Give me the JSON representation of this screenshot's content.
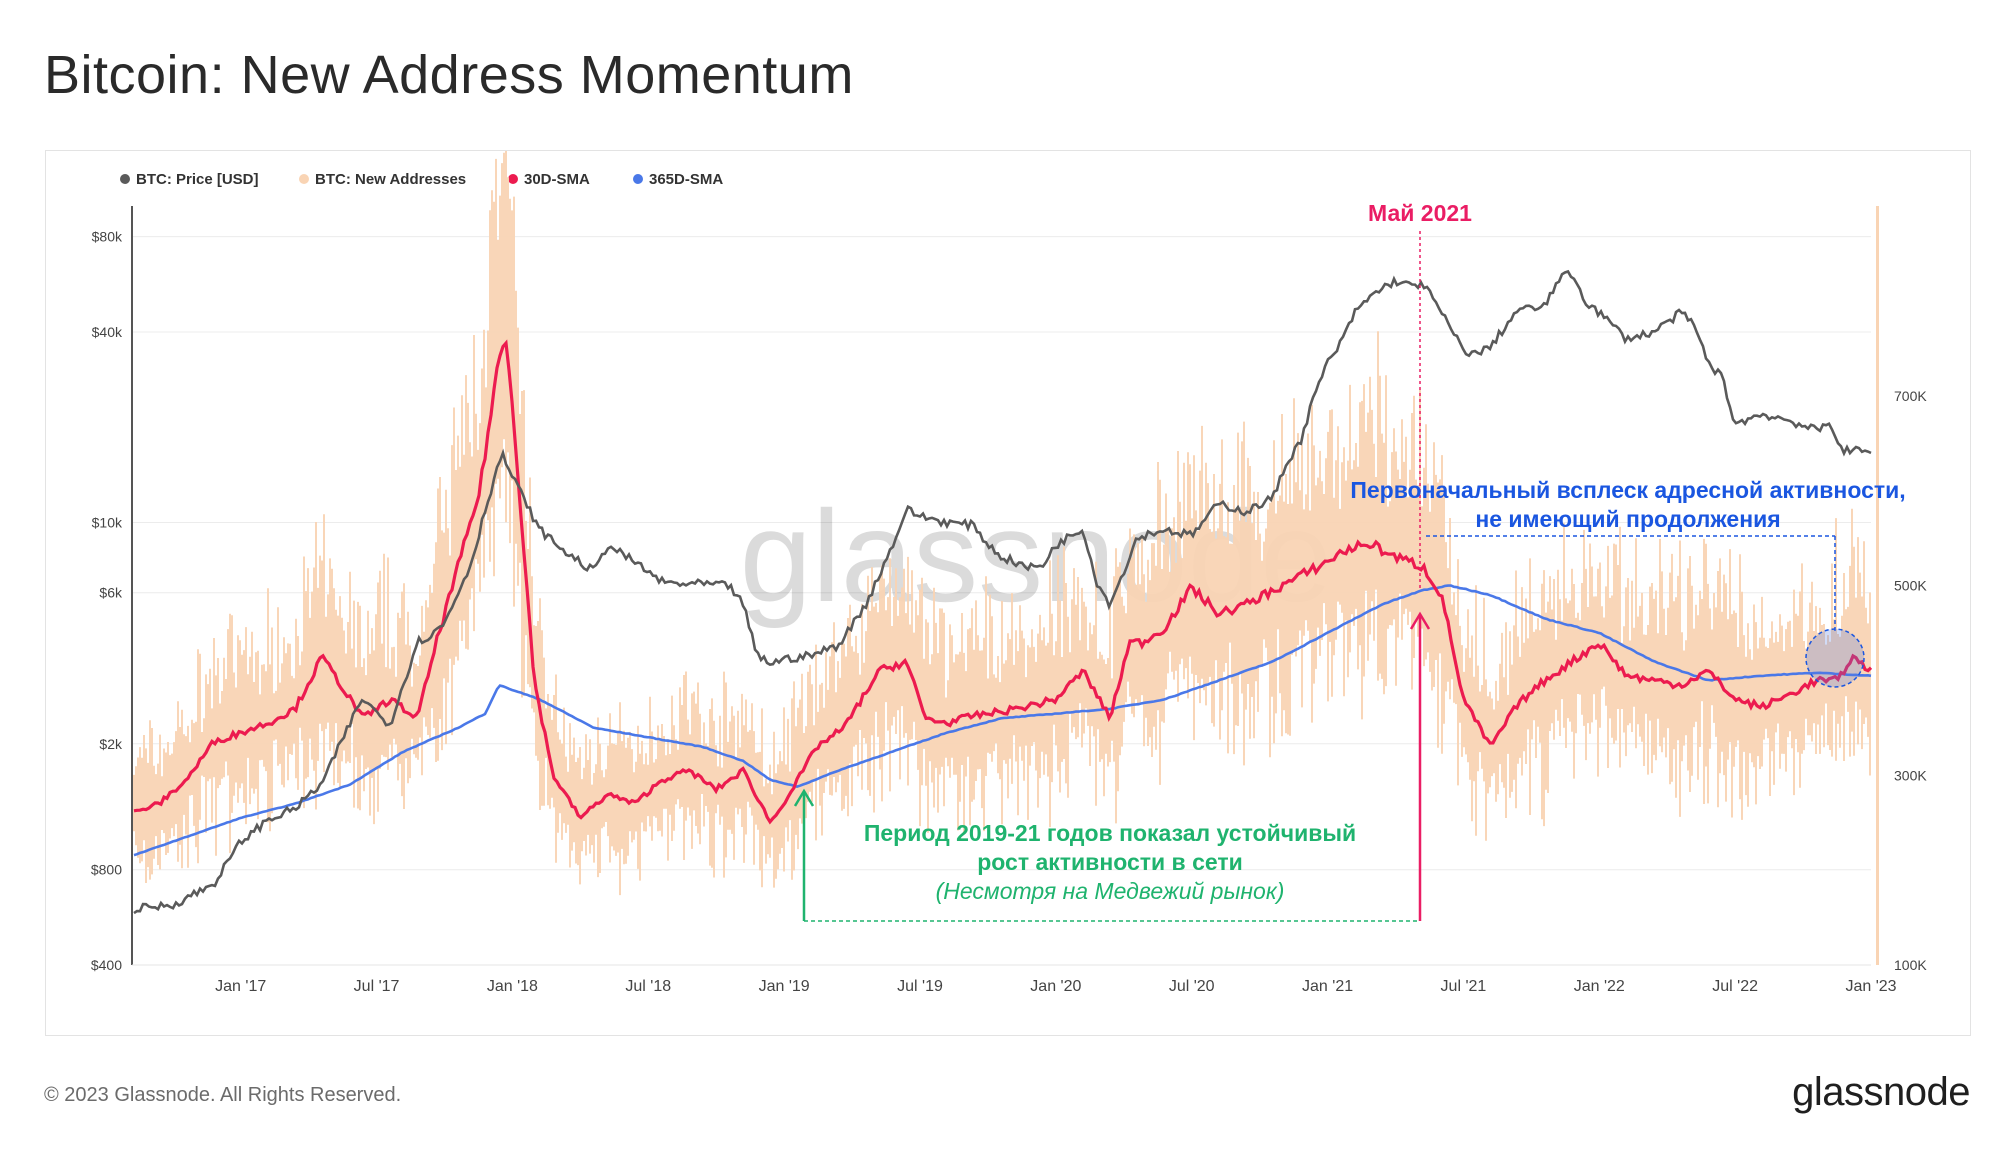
{
  "title": "Bitcoin: New Address Momentum",
  "footer": {
    "copyright": "© 2023 Glassnode. All Rights Reserved.",
    "brand": "glassnode"
  },
  "watermark": "glassnode",
  "colors": {
    "price": "#5a5a5a",
    "new_addresses": "#f9d4b4",
    "sma30": "#ec1b4f",
    "sma365": "#4a78e8",
    "green": "#1fb36e",
    "blue_note": "#1a56e0",
    "magenta": "#ea1d64"
  },
  "chart_data": {
    "type": "line",
    "legend": [
      {
        "label": "BTC: Price [USD]",
        "color": "#5a5a5a"
      },
      {
        "label": "BTC: New Addresses",
        "color": "#f9d4b4"
      },
      {
        "label": "30D-SMA",
        "color": "#ec1b4f"
      },
      {
        "label": "365D-SMA",
        "color": "#4a78e8"
      }
    ],
    "x_ticks": [
      "Jan '17",
      "Jul '17",
      "Jan '18",
      "Jul '18",
      "Jan '19",
      "Jul '19",
      "Jan '20",
      "Jul '20",
      "Jan '21",
      "Jul '21",
      "Jan '22",
      "Jul '22",
      "Jan '23"
    ],
    "x_range": [
      2016.6,
      2023.0
    ],
    "y_left": {
      "scale": "log",
      "range": [
        400,
        100000
      ],
      "ticks": [
        400,
        800,
        2000,
        6000,
        10000,
        40000,
        80000
      ],
      "tick_labels": [
        "$400",
        "$800",
        "$2k",
        "$6k",
        "$10k",
        "$40k",
        "$80k"
      ]
    },
    "y_right": {
      "scale": "linear",
      "range": [
        100000,
        900000
      ],
      "ticks": [
        100000,
        300000,
        500000,
        700000
      ],
      "tick_labels": [
        "100K",
        "300K",
        "500K",
        "700K"
      ]
    },
    "price": {
      "x": [
        2016.6,
        2016.75,
        2016.9,
        2017.0,
        2017.1,
        2017.2,
        2017.3,
        2017.4,
        2017.45,
        2017.5,
        2017.55,
        2017.65,
        2017.7,
        2017.75,
        2017.8,
        2017.85,
        2017.9,
        2017.96,
        2018.0,
        2018.05,
        2018.1,
        2018.2,
        2018.3,
        2018.35,
        2018.45,
        2018.55,
        2018.6,
        2018.7,
        2018.8,
        2018.85,
        2018.9,
        2018.95,
        2019.0,
        2019.1,
        2019.2,
        2019.3,
        2019.4,
        2019.45,
        2019.5,
        2019.6,
        2019.7,
        2019.75,
        2019.8,
        2019.9,
        2019.95,
        2020.0,
        2020.1,
        2020.15,
        2020.2,
        2020.3,
        2020.4,
        2020.5,
        2020.6,
        2020.7,
        2020.8,
        2020.85,
        2020.9,
        2020.95,
        2021.0,
        2021.05,
        2021.1,
        2021.15,
        2021.2,
        2021.25,
        2021.3,
        2021.35,
        2021.4,
        2021.5,
        2021.55,
        2021.6,
        2021.7,
        2021.8,
        2021.85,
        2021.9,
        2021.95,
        2022.0,
        2022.05,
        2022.1,
        2022.2,
        2022.3,
        2022.35,
        2022.4,
        2022.45,
        2022.5,
        2022.6,
        2022.7,
        2022.8,
        2022.85,
        2022.9,
        2022.95,
        2023.0
      ],
      "y": [
        600,
        620,
        720,
        980,
        1150,
        1250,
        1500,
        2300,
        2800,
        2500,
        2300,
        4200,
        4400,
        4800,
        6000,
        7500,
        11000,
        16500,
        14000,
        11500,
        9500,
        8000,
        7000,
        8500,
        7500,
        6500,
        6400,
        6400,
        6300,
        5500,
        3800,
        3600,
        3700,
        3800,
        4100,
        5500,
        8500,
        11000,
        10500,
        10000,
        9800,
        8500,
        7800,
        7200,
        7300,
        8500,
        9600,
        6500,
        5500,
        9000,
        9500,
        9100,
        11500,
        10800,
        12000,
        15500,
        18000,
        25000,
        32000,
        37000,
        46000,
        51000,
        55000,
        58000,
        56000,
        57000,
        49000,
        35000,
        34000,
        36000,
        47000,
        48000,
        59000,
        61000,
        50000,
        46000,
        42000,
        38000,
        40000,
        46000,
        42000,
        32000,
        29000,
        20500,
        22000,
        21000,
        19500,
        20500,
        16800,
        16900,
        16600
      ]
    },
    "new_addresses_30d": {
      "x": [
        2016.6,
        2016.7,
        2016.8,
        2016.9,
        2017.0,
        2017.1,
        2017.2,
        2017.3,
        2017.45,
        2017.55,
        2017.65,
        2017.72,
        2017.8,
        2017.88,
        2017.95,
        2017.98,
        2018.02,
        2018.08,
        2018.15,
        2018.25,
        2018.35,
        2018.45,
        2018.55,
        2018.65,
        2018.75,
        2018.85,
        2018.95,
        2019.03,
        2019.12,
        2019.22,
        2019.35,
        2019.45,
        2019.52,
        2019.6,
        2019.7,
        2019.8,
        2019.9,
        2020.0,
        2020.1,
        2020.2,
        2020.27,
        2020.32,
        2020.4,
        2020.5,
        2020.6,
        2020.7,
        2020.8,
        2020.9,
        2021.0,
        2021.05,
        2021.15,
        2021.25,
        2021.35,
        2021.42,
        2021.5,
        2021.6,
        2021.7,
        2021.8,
        2021.9,
        2022.0,
        2022.1,
        2022.2,
        2022.3,
        2022.4,
        2022.5,
        2022.6,
        2022.7,
        2022.8,
        2022.88,
        2022.93,
        2023.0
      ],
      "y": [
        260000,
        270000,
        295000,
        335000,
        345000,
        355000,
        370000,
        425000,
        360000,
        380000,
        360000,
        440000,
        520000,
        600000,
        740000,
        760000,
        620000,
        400000,
        300000,
        255000,
        280000,
        270000,
        295000,
        305000,
        285000,
        305000,
        250000,
        285000,
        330000,
        350000,
        410000,
        420000,
        360000,
        355000,
        363000,
        367000,
        373000,
        380000,
        410000,
        360000,
        440000,
        440000,
        455000,
        498000,
        470000,
        480000,
        495000,
        510000,
        525000,
        535000,
        545000,
        530000,
        520000,
        490000,
        380000,
        330000,
        375000,
        400000,
        420000,
        440000,
        405000,
        400000,
        395000,
        410000,
        380000,
        372000,
        385000,
        400000,
        400000,
        425000,
        410000
      ]
    },
    "new_addresses_365d": {
      "x": [
        2016.6,
        2016.8,
        2017.0,
        2017.2,
        2017.4,
        2017.6,
        2017.8,
        2017.9,
        2017.95,
        2018.1,
        2018.3,
        2018.5,
        2018.7,
        2018.85,
        2018.95,
        2019.05,
        2019.2,
        2019.4,
        2019.6,
        2019.8,
        2020.0,
        2020.2,
        2020.4,
        2020.6,
        2020.8,
        2021.0,
        2021.2,
        2021.35,
        2021.45,
        2021.6,
        2021.8,
        2022.0,
        2022.2,
        2022.4,
        2022.6,
        2022.8,
        2023.0
      ],
      "y": [
        215000,
        235000,
        255000,
        270000,
        290000,
        325000,
        350000,
        365000,
        395000,
        380000,
        350000,
        340000,
        330000,
        315000,
        295000,
        288000,
        305000,
        325000,
        345000,
        360000,
        365000,
        370000,
        380000,
        400000,
        420000,
        450000,
        480000,
        495000,
        500000,
        490000,
        465000,
        450000,
        420000,
        400000,
        405000,
        408000,
        405000
      ]
    },
    "annotations": [
      {
        "label": "Май 2021",
        "x": 2021.4
      },
      {
        "label": "Период 2019-21 годов показал устойчивый",
        "line2": "рост активности в сети",
        "note": "(Несмотря на Медвежий рынок)",
        "x_start": 2019.05,
        "x_end": 2021.4
      },
      {
        "label": "Первоначальный всплеск адресной активности,",
        "line2": "не имеющий продолжения",
        "x": 2022.88
      }
    ]
  }
}
